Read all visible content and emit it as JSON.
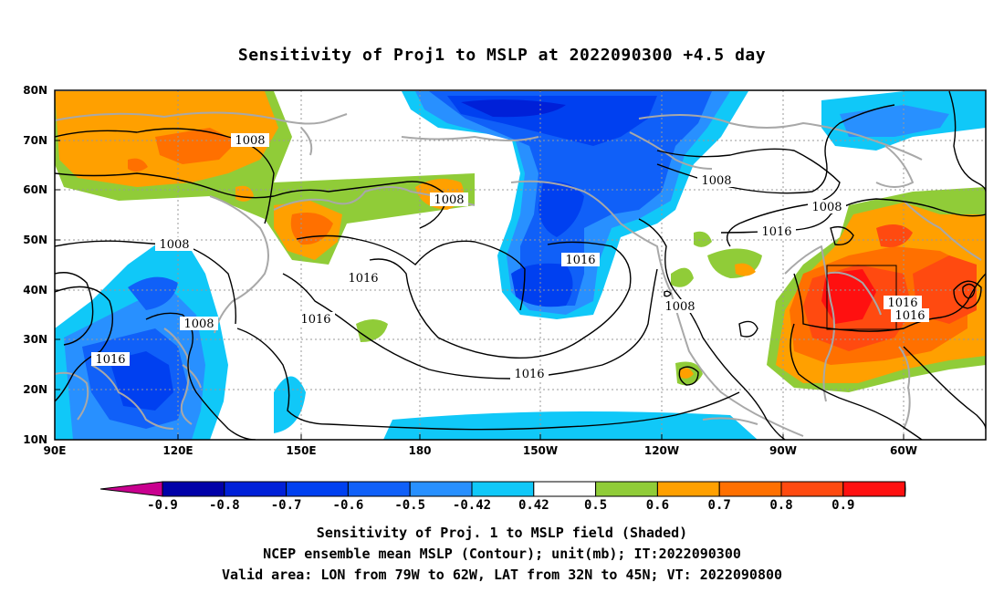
{
  "title": "Sensitivity of Proj1 to MSLP at 2022090300 +4.5 day",
  "axes": {
    "lat_labels": [
      "80N",
      "70N",
      "60N",
      "50N",
      "40N",
      "30N",
      "20N",
      "10N"
    ],
    "lon_labels": [
      "90E",
      "120E",
      "150E",
      "180",
      "150W",
      "120W",
      "90W",
      "60W"
    ]
  },
  "contour_labels": [
    "1008",
    "1008",
    "1008",
    "1008",
    "1008",
    "1008",
    "1008",
    "1016",
    "1016",
    "1016",
    "1016",
    "1016",
    "1016",
    "1016",
    "1016"
  ],
  "colorbar": {
    "labels": [
      "-0.9",
      "-0.8",
      "-0.7",
      "-0.6",
      "-0.5",
      "-0.42",
      "0.42",
      "0.5",
      "0.6",
      "0.7",
      "0.8",
      "0.9"
    ],
    "colors": [
      "#c9008f",
      "#0000a8",
      "#0020d8",
      "#0040f0",
      "#1060f8",
      "#2890ff",
      "#10c8f8",
      "#ffffff",
      "#90cc38",
      "#ffa000",
      "#ff7000",
      "#ff4a10",
      "#ff1010",
      "#ff9cc8"
    ]
  },
  "captions": [
    "Sensitivity of Proj. 1 to MSLP field (Shaded)",
    "NCEP ensemble mean MSLP (Contour); unit(mb); IT:2022090300",
    "Valid area: LON from 79W to 62W, LAT from 32N to 45N; VT: 2022090800"
  ]
}
